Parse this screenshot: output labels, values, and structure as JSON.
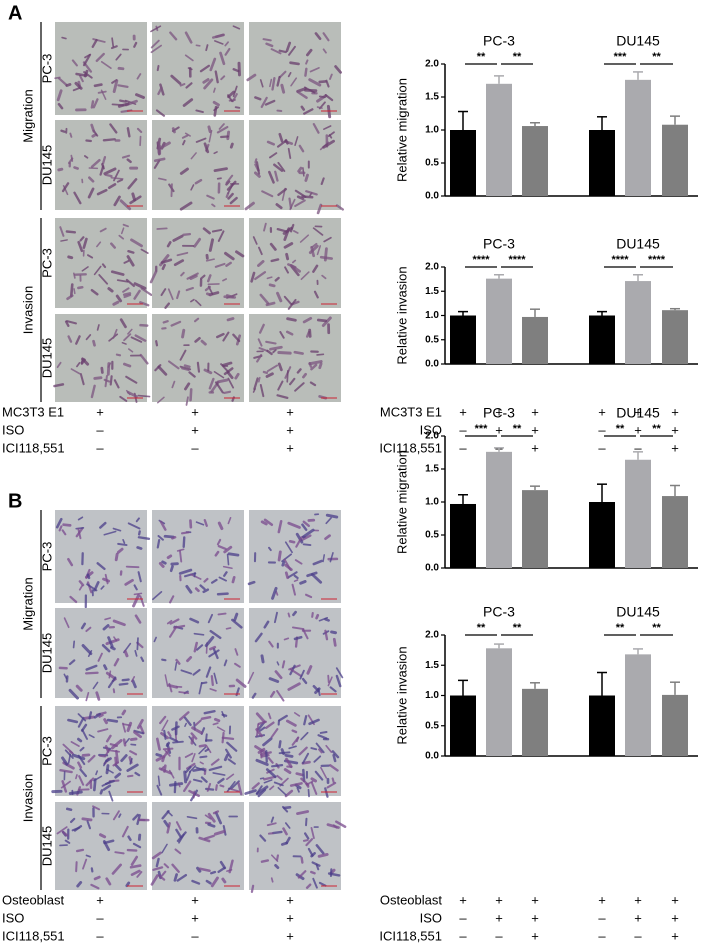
{
  "panels": [
    {
      "label": "A",
      "row_groups": [
        {
          "label": "Migration",
          "rows": [
            "PC-3",
            "DU145"
          ]
        },
        {
          "label": "Invasion",
          "rows": [
            "PC-3",
            "DU145"
          ]
        }
      ],
      "treatments": [
        {
          "label": "MC3T3 E1",
          "signs": [
            "+",
            "+",
            "+"
          ]
        },
        {
          "label": "ISO",
          "signs": [
            "–",
            "+",
            "+"
          ]
        },
        {
          "label": "ICI118,551",
          "signs": [
            "–",
            "–",
            "+"
          ]
        }
      ],
      "charts": [
        {
          "type": "bar",
          "ylabel": "Relative migration",
          "ylim": [
            0,
            2
          ],
          "yticks": [
            {
              "value": 0,
              "label": "0.0"
            },
            {
              "value": 0.5,
              "label": "0.5"
            },
            {
              "value": 1,
              "label": "1.0"
            },
            {
              "value": 1.5,
              "label": "1.5"
            },
            {
              "value": 2,
              "label": "2.0"
            }
          ],
          "colors": [
            "#000000",
            "#aaaaae",
            "#7f7f7f"
          ],
          "groups": [
            {
              "name": "PC-3",
              "values": [
                1.0,
                1.7,
                1.06
              ],
              "errors": [
                0.28,
                0.12,
                0.05
              ],
              "significance": [
                "**",
                "**"
              ]
            },
            {
              "name": "DU145",
              "values": [
                1.0,
                1.76,
                1.08
              ],
              "errors": [
                0.2,
                0.12,
                0.13
              ],
              "significance": [
                "***",
                "**"
              ]
            }
          ]
        },
        {
          "type": "bar",
          "ylabel": "Relative invasion",
          "ylim": [
            0,
            2
          ],
          "yticks": [
            {
              "value": 0,
              "label": "0.0"
            },
            {
              "value": 0.5,
              "label": "0.5"
            },
            {
              "value": 1,
              "label": "1.0"
            },
            {
              "value": 1.5,
              "label": "1.5"
            },
            {
              "value": 2,
              "label": "2.0"
            }
          ],
          "colors": [
            "#000000",
            "#aaaaae",
            "#7f7f7f"
          ],
          "groups": [
            {
              "name": "PC-3",
              "values": [
                1.0,
                1.76,
                0.97
              ],
              "errors": [
                0.08,
                0.08,
                0.16
              ],
              "significance": [
                "****",
                "****"
              ]
            },
            {
              "name": "DU145",
              "values": [
                1.0,
                1.71,
                1.11
              ],
              "errors": [
                0.08,
                0.13,
                0.03
              ],
              "significance": [
                "****",
                "****"
              ]
            }
          ]
        }
      ]
    },
    {
      "label": "B",
      "row_groups": [
        {
          "label": "Migration",
          "rows": [
            "PC-3",
            "DU145"
          ]
        },
        {
          "label": "Invasion",
          "rows": [
            "PC-3",
            "DU145"
          ]
        }
      ],
      "treatments": [
        {
          "label": "Osteoblast",
          "signs": [
            "+",
            "+",
            "+"
          ]
        },
        {
          "label": "ISO",
          "signs": [
            "–",
            "+",
            "+"
          ]
        },
        {
          "label": "ICI118,551",
          "signs": [
            "–",
            "–",
            "+"
          ]
        }
      ],
      "charts": [
        {
          "type": "bar",
          "ylabel": "Relative migration",
          "ylim": [
            0,
            2
          ],
          "yticks": [
            {
              "value": 0,
              "label": "0.0"
            },
            {
              "value": 0.5,
              "label": "0.5"
            },
            {
              "value": 1,
              "label": "1.0"
            },
            {
              "value": 1.5,
              "label": "1.5"
            },
            {
              "value": 2,
              "label": "2.0"
            }
          ],
          "colors": [
            "#000000",
            "#aaaaae",
            "#7f7f7f"
          ],
          "groups": [
            {
              "name": "PC-3",
              "values": [
                0.97,
                1.76,
                1.18
              ],
              "errors": [
                0.14,
                0.06,
                0.06
              ],
              "significance": [
                "***",
                "**"
              ]
            },
            {
              "name": "DU145",
              "values": [
                1.0,
                1.64,
                1.09
              ],
              "errors": [
                0.27,
                0.12,
                0.16
              ],
              "significance": [
                "**",
                "**"
              ]
            }
          ]
        },
        {
          "type": "bar",
          "ylabel": "Relative invasion",
          "ylim": [
            0,
            2
          ],
          "yticks": [
            {
              "value": 0,
              "label": "0.0"
            },
            {
              "value": 0.5,
              "label": "0.5"
            },
            {
              "value": 1,
              "label": "1.0"
            },
            {
              "value": 1.5,
              "label": "1.5"
            },
            {
              "value": 2,
              "label": "2.0"
            }
          ],
          "colors": [
            "#000000",
            "#aaaaae",
            "#7f7f7f"
          ],
          "groups": [
            {
              "name": "PC-3",
              "values": [
                1.0,
                1.78,
                1.11
              ],
              "errors": [
                0.25,
                0.07,
                0.1
              ],
              "significance": [
                "**",
                "**"
              ]
            },
            {
              "name": "DU145",
              "values": [
                1.0,
                1.68,
                1.01
              ],
              "errors": [
                0.38,
                0.09,
                0.21
              ],
              "significance": [
                "**",
                "**"
              ]
            }
          ]
        }
      ]
    }
  ]
}
